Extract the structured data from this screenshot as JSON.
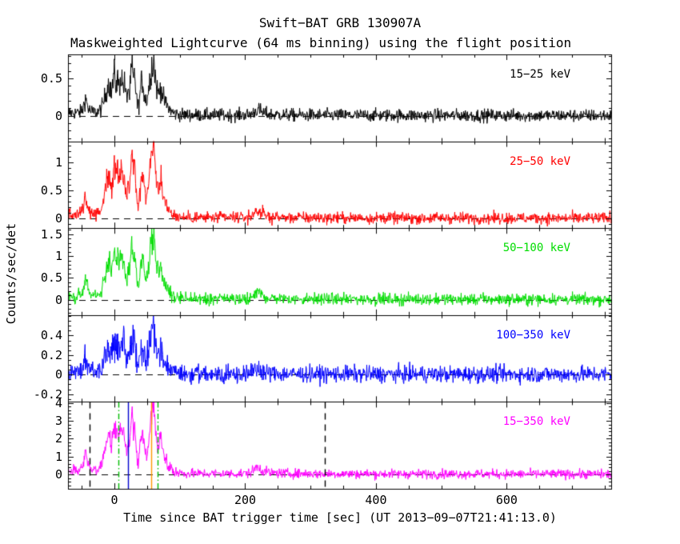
{
  "chart_data": {
    "type": "line",
    "title": "Swift−BAT GRB 130907A",
    "subtitle": "Maskweighted Lightcurve (64 ms binning) using the flight position",
    "xlabel": "Time since BAT trigger time [sec] (UT 2013−09−07T21:41:13.0)",
    "ylabel": "Counts/sec/det",
    "x_axis": {
      "lim": [
        -71,
        761
      ],
      "major_ticks": [
        0,
        200,
        400,
        600
      ],
      "major_tick_labels": [
        "0",
        "200",
        "400",
        "600"
      ],
      "minor_step": 50
    },
    "grid": false,
    "legend_position": "inside-top-right-of-each-panel",
    "panels": [
      {
        "label": "15−25 keV",
        "color": "#000000",
        "ylim": [
          -0.34,
          0.82
        ],
        "major_ticks": [
          0,
          0.5
        ],
        "major_tick_labels": [
          "0",
          "0.5"
        ],
        "minor_step": 0.1,
        "peak_amplitude": 0.78,
        "noise_sigma": 0.042
      },
      {
        "label": "25−50 keV",
        "color": "#ff0000",
        "ylim": [
          -0.17,
          1.37
        ],
        "major_ticks": [
          0,
          0.5,
          1
        ],
        "major_tick_labels": [
          "0",
          "0.5",
          "1"
        ],
        "minor_step": 0.1,
        "peak_amplitude": 1.38,
        "noise_sigma": 0.05
      },
      {
        "label": "50−100 keV",
        "color": "#00dd00",
        "ylim": [
          -0.35,
          1.64
        ],
        "major_ticks": [
          0,
          0.5,
          1,
          1.5
        ],
        "major_tick_labels": [
          "0",
          "0.5",
          "1",
          "1.5"
        ],
        "minor_step": 0.1,
        "peak_amplitude": 1.6,
        "noise_sigma": 0.065
      },
      {
        "label": "100−350 keV",
        "color": "#0000ff",
        "ylim": [
          -0.28,
          0.61
        ],
        "major_ticks": [
          -0.2,
          0,
          0.2,
          0.4
        ],
        "major_tick_labels": [
          "-0.2",
          "0",
          "0.2",
          "0.4"
        ],
        "minor_step": 0.05,
        "peak_amplitude": 0.52,
        "noise_sigma": 0.042
      },
      {
        "label": "15−350 keV",
        "color": "#ff00ff",
        "ylim": [
          -0.8,
          4.06
        ],
        "major_ticks": [
          0,
          1,
          2,
          3,
          4
        ],
        "major_tick_labels": [
          "0",
          "1",
          "2",
          "3",
          "4"
        ],
        "minor_step": 0.2,
        "peak_amplitude": 4.1,
        "noise_sigma": 0.13
      }
    ],
    "zero_line": {
      "value": 0,
      "style": "dashed",
      "color": "#000000"
    },
    "burst_markers_bottom_panel": [
      {
        "t": -38,
        "color": "#000000",
        "style": "dashed"
      },
      {
        "t": 6,
        "color": "#00bb00",
        "style": "dashdot"
      },
      {
        "t": 21,
        "color": "#0000cc",
        "style": "solid"
      },
      {
        "t": 56,
        "color": "#ff9900",
        "style": "solid"
      },
      {
        "t": 66,
        "color": "#00bb00",
        "style": "dashdot"
      },
      {
        "t": 322,
        "color": "#000000",
        "style": "dashed"
      }
    ],
    "profile_normalized_keypoints": [
      [
        -71,
        0.05
      ],
      [
        -62,
        0.05
      ],
      [
        -52,
        0.06
      ],
      [
        -48,
        0.12
      ],
      [
        -45,
        0.3
      ],
      [
        -43,
        0.26
      ],
      [
        -40,
        0.12
      ],
      [
        -36,
        0.07
      ],
      [
        -30,
        0.06
      ],
      [
        -25,
        0.07
      ],
      [
        -20,
        0.12
      ],
      [
        -17,
        0.22
      ],
      [
        -14,
        0.35
      ],
      [
        -11,
        0.48
      ],
      [
        -9,
        0.58
      ],
      [
        -7,
        0.52
      ],
      [
        -5,
        0.38
      ],
      [
        -3,
        0.52
      ],
      [
        -1,
        0.65
      ],
      [
        0,
        0.7
      ],
      [
        1,
        0.6
      ],
      [
        3,
        0.52
      ],
      [
        5,
        0.64
      ],
      [
        7,
        0.48
      ],
      [
        9,
        0.62
      ],
      [
        11,
        0.68
      ],
      [
        13,
        0.5
      ],
      [
        15,
        0.58
      ],
      [
        17,
        0.4
      ],
      [
        19,
        0.28
      ],
      [
        21,
        0.52
      ],
      [
        23,
        0.3
      ],
      [
        25,
        0.68
      ],
      [
        27,
        0.82
      ],
      [
        29,
        0.58
      ],
      [
        31,
        0.72
      ],
      [
        33,
        0.42
      ],
      [
        35,
        0.18
      ],
      [
        37,
        0.16
      ],
      [
        39,
        0.34
      ],
      [
        41,
        0.56
      ],
      [
        43,
        0.6
      ],
      [
        45,
        0.44
      ],
      [
        47,
        0.3
      ],
      [
        49,
        0.26
      ],
      [
        51,
        0.36
      ],
      [
        53,
        0.52
      ],
      [
        55,
        0.72
      ],
      [
        57,
        0.88
      ],
      [
        58,
        0.78
      ],
      [
        60,
        1.0
      ],
      [
        61,
        0.85
      ],
      [
        63,
        0.62
      ],
      [
        65,
        0.46
      ],
      [
        67,
        0.38
      ],
      [
        69,
        0.42
      ],
      [
        71,
        0.5
      ],
      [
        73,
        0.4
      ],
      [
        75,
        0.3
      ],
      [
        77,
        0.24
      ],
      [
        80,
        0.18
      ],
      [
        83,
        0.13
      ],
      [
        86,
        0.09
      ],
      [
        90,
        0.05
      ],
      [
        94,
        0.03
      ],
      [
        98,
        0.022
      ],
      [
        105,
        0.016
      ],
      [
        120,
        0.013
      ],
      [
        150,
        0.012
      ],
      [
        190,
        0.012
      ],
      [
        205,
        0.018
      ],
      [
        212,
        0.05
      ],
      [
        217,
        0.1
      ],
      [
        221,
        0.1
      ],
      [
        226,
        0.06
      ],
      [
        232,
        0.035
      ],
      [
        240,
        0.022
      ],
      [
        255,
        0.016
      ],
      [
        280,
        0.012
      ],
      [
        320,
        0.01
      ],
      [
        400,
        0.008
      ],
      [
        500,
        0.007
      ],
      [
        600,
        0.006
      ],
      [
        700,
        0.005
      ],
      [
        761,
        0.005
      ]
    ]
  }
}
